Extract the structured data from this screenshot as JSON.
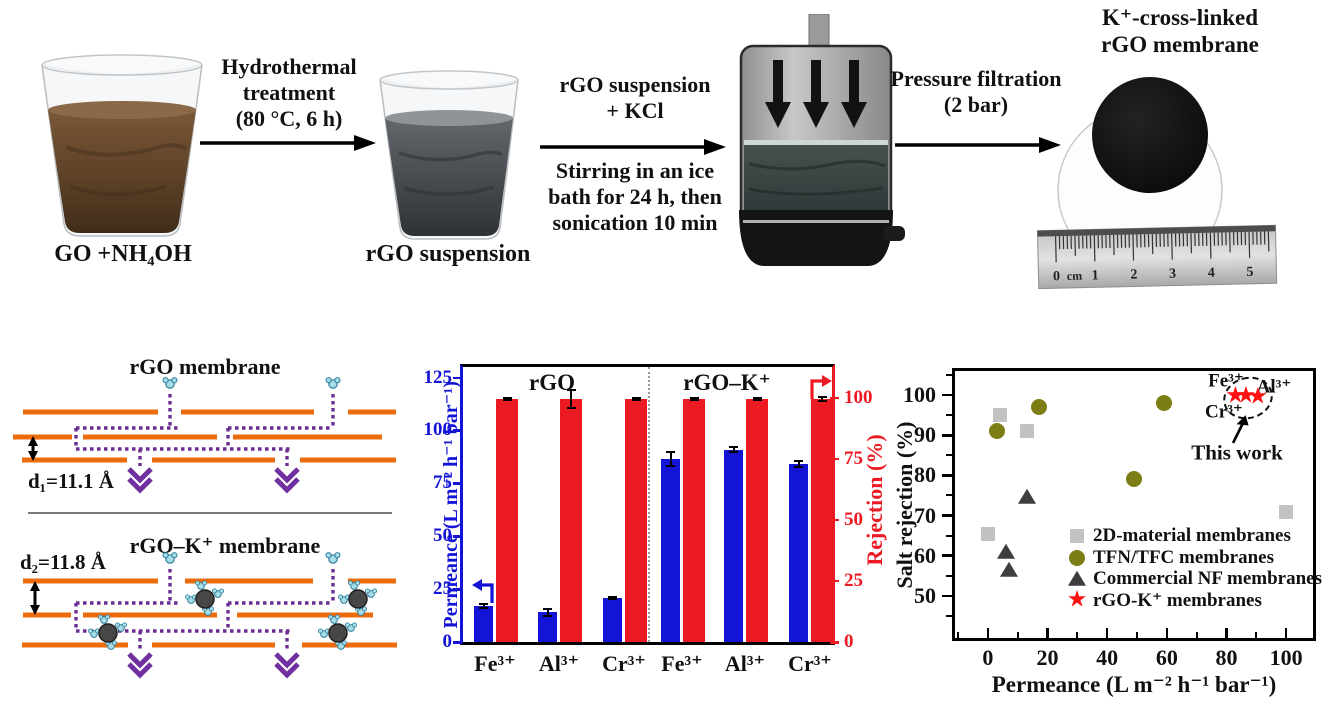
{
  "process": {
    "beaker1_label": "GO +NH₄OH",
    "beaker2_label": "rGO suspension",
    "step1": {
      "line1": "Hydrothermal",
      "line2": "treatment",
      "line3": "(80 °C, 6 h)"
    },
    "step2_top": {
      "line1": "rGO suspension",
      "line2": "+ KCl"
    },
    "step2_bottom": {
      "line1": "Stirring in an ice",
      "line2": "bath for 24 h, then",
      "line3": "sonication 10 min"
    },
    "step3": {
      "line1": "Pressure filtration",
      "line2": "(2 bar)"
    },
    "membrane_title": {
      "line1": "K⁺-cross-linked",
      "line2": "rGO membrane"
    },
    "ruler_labels": [
      "0",
      "cm",
      "1",
      "2",
      "3",
      "4",
      "5"
    ]
  },
  "schematic": {
    "top_title": "rGO membrane",
    "top_spacing": "d₁=11.1 Å",
    "bottom_title": "rGO–K⁺ membrane",
    "bottom_spacing": "d₂=11.8 Å",
    "colors": {
      "sheet": "#EC6B0C",
      "path": "#6B2D91",
      "chevron": "#7030A0",
      "water": "#A7DCE8",
      "ion": "#474747"
    }
  },
  "chart_data": [
    {
      "type": "bar",
      "categories": [
        "Fe³⁺",
        "Al³⁺",
        "Cr³⁺",
        "Fe³⁺",
        "Al³⁺",
        "Cr³⁺"
      ],
      "group_labels": [
        "rGO",
        "rGO–K⁺"
      ],
      "series": [
        {
          "name": "Permeance",
          "axis": "left",
          "color": "#1414D6",
          "values": [
            17,
            14,
            21,
            86.5,
            91,
            84
          ],
          "errors": [
            1,
            1.5,
            0.5,
            3.5,
            1,
            1.5
          ]
        },
        {
          "name": "Rejection",
          "axis": "right",
          "color": "#EC1B23",
          "values": [
            99.5,
            99.4,
            99.6,
            99.5,
            99.6,
            99.3
          ],
          "errors": [
            0.5,
            3.5,
            0.4,
            0.4,
            0.4,
            0.8
          ]
        }
      ],
      "left_axis": {
        "label": "Permeance (L m⁻² h⁻¹ bar⁻¹)",
        "ticks": [
          0,
          25,
          50,
          75,
          100,
          125
        ],
        "max": 130
      },
      "right_axis": {
        "label": "Rejection (%)",
        "ticks": [
          0,
          25,
          50,
          75,
          100
        ],
        "max": 112.5
      },
      "grid": false
    },
    {
      "type": "scatter",
      "xlabel": "Permeance (L m⁻² h⁻¹ bar⁻¹)",
      "ylabel": "Salt rejection (%)",
      "x_ticks": [
        0,
        20,
        40,
        60,
        80,
        100
      ],
      "y_ticks": [
        50,
        60,
        70,
        80,
        90,
        100
      ],
      "x_range": [
        -11,
        109
      ],
      "y_range": [
        39.5,
        106
      ],
      "legend_position": "inside lower-right",
      "series": [
        {
          "name": "2D-material membranes",
          "marker": "square",
          "color": "#C2C2C2",
          "points": [
            [
              4,
              95
            ],
            [
              13,
              91
            ],
            [
              0,
              65.5
            ],
            [
              100,
              71
            ]
          ]
        },
        {
          "name": "TFN/TFC membranes",
          "marker": "circle",
          "color": "#7D7D15",
          "points": [
            [
              3,
              91
            ],
            [
              17,
              97
            ],
            [
              59,
              98
            ],
            [
              49,
              79
            ]
          ]
        },
        {
          "name": "Commercial NF membranes",
          "marker": "triangle",
          "color": "#3E3E3E",
          "points": [
            [
              13,
              74.5
            ],
            [
              6,
              61
            ],
            [
              7,
              56.5
            ]
          ]
        },
        {
          "name": "rGO-K⁺ membranes",
          "marker": "star",
          "color": "#FF1111",
          "points": [
            [
              83,
              99.4
            ],
            [
              86.5,
              99.6
            ],
            [
              90.5,
              99.2
            ]
          ]
        }
      ],
      "annotation": {
        "labels": [
          "Fe³⁺",
          "Al³⁺",
          "Cr³⁺"
        ],
        "callout": "This work"
      }
    }
  ]
}
